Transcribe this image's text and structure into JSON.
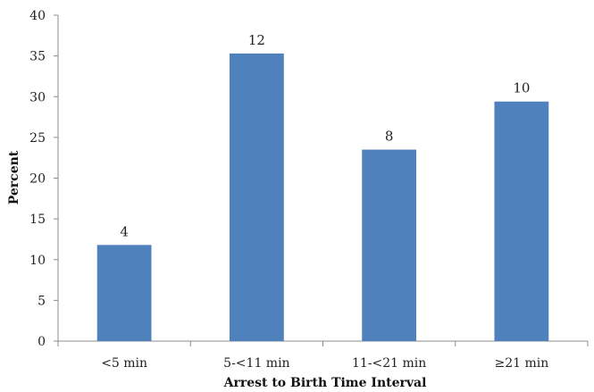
{
  "chart_data": {
    "type": "bar",
    "categories": [
      "<5 min",
      "5-<11 min",
      "11-<21 min",
      "≥21 min"
    ],
    "values": [
      11.8,
      35.3,
      23.5,
      29.4
    ],
    "data_labels": [
      "4",
      "12",
      "8",
      "10"
    ],
    "title": "",
    "xlabel": "Arrest to Birth Time Interval",
    "ylabel": "Percent",
    "ylim": [
      0,
      40
    ],
    "yticks": [
      "0",
      "5",
      "10",
      "15",
      "20",
      "25",
      "30",
      "35",
      "40"
    ],
    "grid": false,
    "legend": "none",
    "bar_color": "#4f81bd"
  }
}
